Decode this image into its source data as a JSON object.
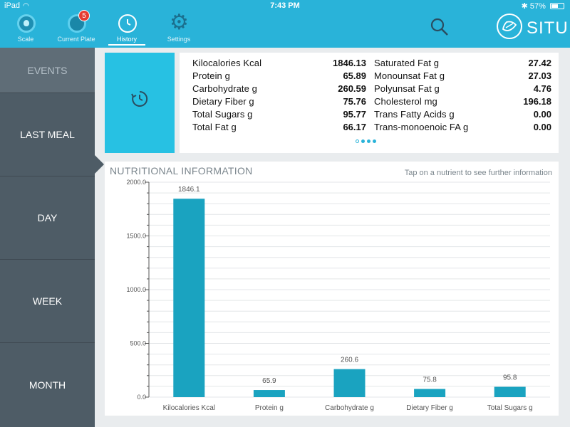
{
  "status_bar": {
    "device": "iPad",
    "time": "7:43 PM",
    "battery": "57%",
    "battery_level": 0.57
  },
  "tabs": [
    {
      "label": "Scale"
    },
    {
      "label": "Current Plate",
      "badge": "5"
    },
    {
      "label": "History"
    },
    {
      "label": "Settings"
    }
  ],
  "brand": {
    "name": "SITU"
  },
  "sidebar": {
    "events": "EVENTS",
    "items": [
      "LAST MEAL",
      "DAY",
      "WEEK",
      "MONTH"
    ]
  },
  "summary": {
    "left": [
      {
        "name": "Kilocalories Kcal",
        "value": "1846.13"
      },
      {
        "name": "Protein g",
        "value": "65.89"
      },
      {
        "name": "Carbohydrate g",
        "value": "260.59"
      },
      {
        "name": "Dietary Fiber g",
        "value": "75.76"
      },
      {
        "name": "Total Sugars g",
        "value": "95.77"
      },
      {
        "name": "Total Fat g",
        "value": "66.17"
      }
    ],
    "right": [
      {
        "name": "Saturated Fat g",
        "value": "27.42"
      },
      {
        "name": "Monounsat Fat g",
        "value": "27.03"
      },
      {
        "name": "Polyunsat Fat g",
        "value": "4.76"
      },
      {
        "name": "Cholesterol mg",
        "value": "196.18"
      },
      {
        "name": "Trans Fatty Acids g",
        "value": "0.00"
      },
      {
        "name": "Trans-monoenoic FA g",
        "value": "0.00"
      }
    ]
  },
  "chart": {
    "title": "NUTRITIONAL INFORMATION",
    "hint": "Tap on a nutrient to see further information"
  },
  "colors": {
    "accent": "#29b3d9",
    "bar": "#1aa3c0",
    "sidebar": "#4e5c66"
  },
  "chart_data": {
    "type": "bar",
    "title": "NUTRITIONAL INFORMATION",
    "categories": [
      "Kilocalories Kcal",
      "Protein g",
      "Carbohydrate g",
      "Dietary Fiber g",
      "Total Sugars g"
    ],
    "values": [
      1846.1,
      65.9,
      260.6,
      75.8,
      95.8
    ],
    "value_labels": [
      "1846.1",
      "65.9",
      "260.6",
      "75.8",
      "95.8"
    ],
    "yticks": [
      0,
      500,
      1000,
      1500,
      2000
    ],
    "ytick_labels": [
      "0.0",
      "500.0",
      "1000.0",
      "1500.0",
      "2000.0"
    ],
    "ylim": [
      0,
      2000
    ],
    "xlabel": "",
    "ylabel": "",
    "grid": true
  }
}
